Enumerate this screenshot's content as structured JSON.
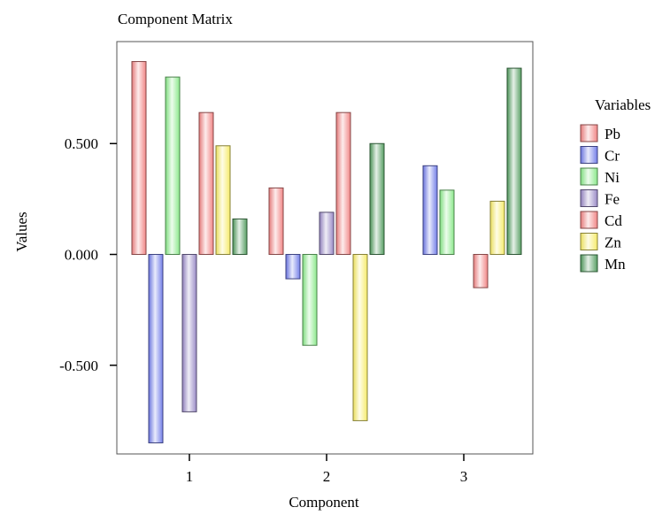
{
  "chart_data": {
    "type": "bar",
    "title": "Component Matrix",
    "xlabel": "Component",
    "ylabel": "Values",
    "categories": [
      "1",
      "2",
      "3"
    ],
    "yticks": [
      "0.500",
      "0.000",
      "-0.500"
    ],
    "ylim": [
      -0.9,
      0.96
    ],
    "legend_title": "Variables",
    "legend_position": "right",
    "grid": false,
    "series": [
      {
        "name": "Pb",
        "color": "#f08080",
        "values": [
          0.87,
          0.3,
          null
        ]
      },
      {
        "name": "Cr",
        "color": "#6d78e8",
        "values": [
          -0.85,
          -0.11,
          0.4
        ]
      },
      {
        "name": "Ni",
        "color": "#86e886",
        "values": [
          0.8,
          -0.41,
          0.29
        ]
      },
      {
        "name": "Fe",
        "color": "#9585c4",
        "values": [
          -0.71,
          0.19,
          null
        ]
      },
      {
        "name": "Cd",
        "color": "#f08080",
        "values": [
          0.64,
          0.64,
          -0.15
        ]
      },
      {
        "name": "Zn",
        "color": "#f5ea62",
        "values": [
          0.49,
          -0.75,
          0.24
        ]
      },
      {
        "name": "Mn",
        "color": "#4f9a5c",
        "values": [
          0.16,
          0.5,
          0.84
        ]
      }
    ]
  }
}
